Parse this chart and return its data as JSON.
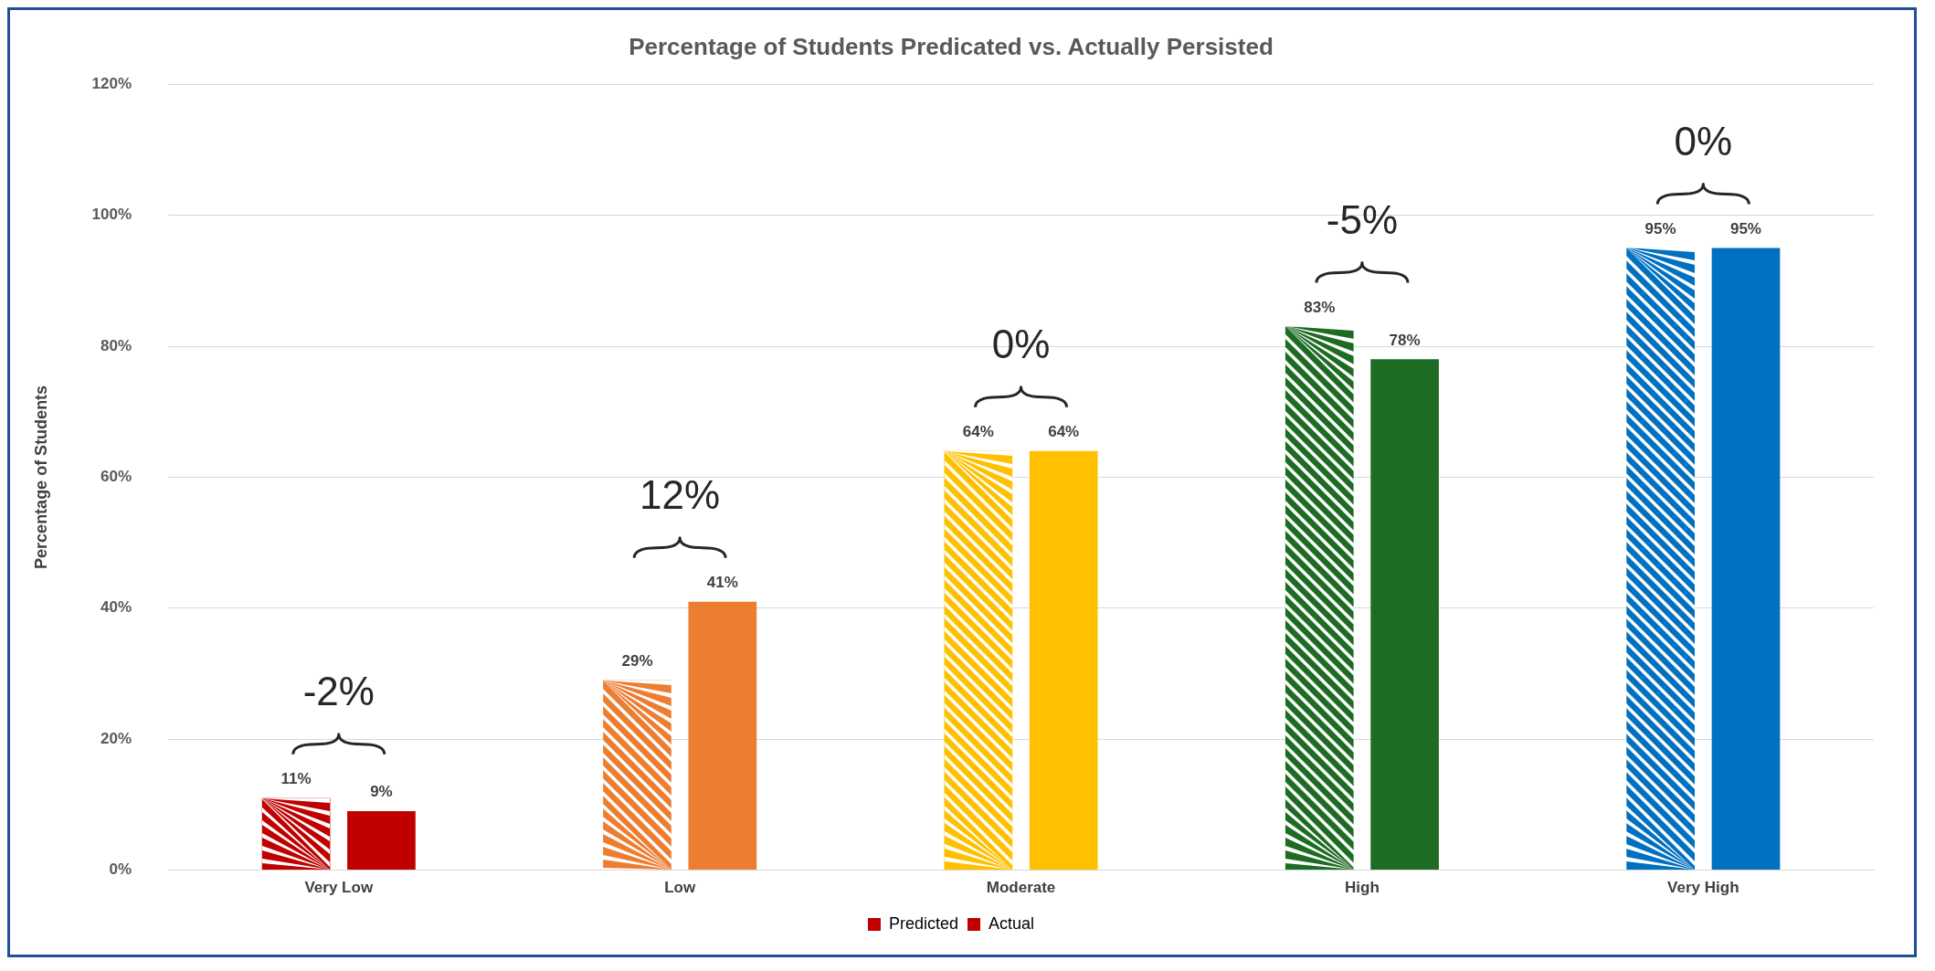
{
  "chart_data": {
    "type": "bar",
    "title": "Percentage of Students Predicated vs. Actually Persisted",
    "ylabel": "Percentage of Students",
    "categories": [
      "Very Low",
      "Low",
      "Moderate",
      "High",
      "Very High"
    ],
    "series": [
      {
        "name": "Predicted",
        "colors": [
          "#c00000",
          "#ed7d31",
          "#ffc000",
          "#1e6b24",
          "#0070c0"
        ],
        "values": [
          11,
          29,
          64,
          83,
          95
        ],
        "value_labels": [
          "11%",
          "29%",
          "64%",
          "83%",
          "95%"
        ]
      },
      {
        "name": "Actual",
        "colors": [
          "#c00000",
          "#ed7d31",
          "#ffc000",
          "#1e6b24",
          "#0070c0"
        ],
        "values": [
          9,
          41,
          64,
          78,
          95
        ],
        "value_labels": [
          "9%",
          "41%",
          "64%",
          "78%",
          "95%"
        ]
      }
    ],
    "ylim": [
      0,
      120
    ],
    "yticks": [
      {
        "value": 0,
        "label": "0%"
      },
      {
        "value": 20,
        "label": "20%"
      },
      {
        "value": 40,
        "label": "40%"
      },
      {
        "value": 60,
        "label": "60%"
      },
      {
        "value": 80,
        "label": "80%"
      },
      {
        "value": 100,
        "label": "100%"
      },
      {
        "value": 120,
        "label": "120%"
      }
    ],
    "grid": "y",
    "legend": "bottom",
    "annotations": [
      "-2%",
      "12%",
      "0%",
      "-5%",
      "0%"
    ]
  }
}
